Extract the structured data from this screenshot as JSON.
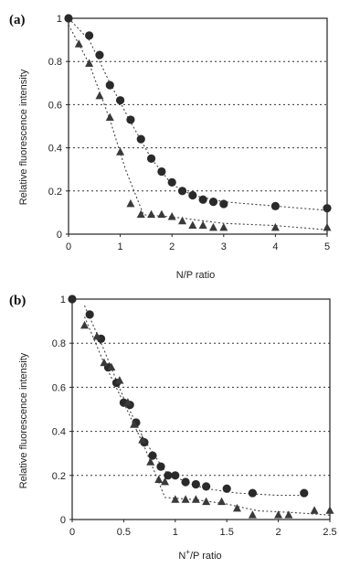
{
  "chart_data": [
    {
      "type": "scatter",
      "panel_label": "(a)",
      "xlabel": "N/P ratio",
      "xlabel_sup": "",
      "xlabel_rest": "",
      "ylabel": "Relative fluorescence intensity",
      "xlim": [
        0,
        5
      ],
      "ylim": [
        0,
        1
      ],
      "xticks": [
        "0",
        "1",
        "2",
        "3",
        "4",
        "5"
      ],
      "xtick_values": [
        0,
        1,
        2,
        3,
        4,
        5
      ],
      "yticks": [
        "0",
        "0.2",
        "0.4",
        "0.6",
        "0.8",
        "1"
      ],
      "ytick_values": [
        0,
        0.2,
        0.4,
        0.6,
        0.8,
        1
      ],
      "grid": "horizontal dotted",
      "series": [
        {
          "marker": "circle",
          "x": [
            0,
            0.4,
            0.6,
            0.8,
            1.0,
            1.2,
            1.4,
            1.6,
            1.8,
            2.0,
            2.2,
            2.4,
            2.6,
            2.8,
            3.0,
            4.0,
            5.0
          ],
          "y": [
            1.0,
            0.92,
            0.83,
            0.69,
            0.62,
            0.53,
            0.44,
            0.35,
            0.29,
            0.24,
            0.2,
            0.18,
            0.16,
            0.15,
            0.14,
            0.13,
            0.12
          ]
        },
        {
          "marker": "triangle",
          "x": [
            0.2,
            0.4,
            0.6,
            0.8,
            1.0,
            1.2,
            1.4,
            1.6,
            1.8,
            2.0,
            2.2,
            2.4,
            2.6,
            2.8,
            3.0,
            4.0,
            5.0
          ],
          "y": [
            0.88,
            0.79,
            0.64,
            0.54,
            0.38,
            0.14,
            0.09,
            0.09,
            0.09,
            0.08,
            0.06,
            0.04,
            0.04,
            0.03,
            0.03,
            0.03,
            0.03
          ]
        }
      ],
      "fit_lines": [
        {
          "x": [
            0,
            0.4,
            0.8,
            1.2,
            1.6,
            2.0,
            2.4,
            3.0,
            4.0,
            5.0
          ],
          "y": [
            1.0,
            0.9,
            0.7,
            0.52,
            0.35,
            0.23,
            0.18,
            0.15,
            0.13,
            0.11
          ]
        },
        {
          "x": [
            0,
            0.4,
            0.8,
            1.1,
            1.45,
            2.0,
            3.0,
            4.0,
            5.0
          ],
          "y": [
            0.97,
            0.79,
            0.53,
            0.3,
            0.09,
            0.08,
            0.05,
            0.04,
            0.02
          ]
        }
      ]
    },
    {
      "type": "scatter",
      "panel_label": "(b)",
      "xlabel": "N+/P ratio",
      "xlabel_sup": "+",
      "xlabel_rest": "/P ratio",
      "ylabel": "Relative fluorescence intensity",
      "xlim": [
        0,
        2.5
      ],
      "ylim": [
        0,
        1
      ],
      "xticks": [
        "0",
        "0.5",
        "1",
        "1.5",
        "2",
        "2.5"
      ],
      "xtick_values": [
        0,
        0.5,
        1,
        1.5,
        2,
        2.5
      ],
      "yticks": [
        "0",
        "0.2",
        "0.4",
        "0.6",
        "0.8",
        "1"
      ],
      "ytick_values": [
        0,
        0.2,
        0.4,
        0.6,
        0.8,
        1
      ],
      "grid": "horizontal dotted",
      "series": [
        {
          "marker": "circle",
          "x": [
            0,
            0.17,
            0.28,
            0.35,
            0.43,
            0.5,
            0.56,
            0.62,
            0.7,
            0.78,
            0.86,
            0.93,
            1.0,
            1.1,
            1.2,
            1.3,
            1.5,
            1.75,
            2.25
          ],
          "y": [
            1.0,
            0.93,
            0.82,
            0.69,
            0.62,
            0.53,
            0.52,
            0.44,
            0.35,
            0.29,
            0.24,
            0.2,
            0.2,
            0.17,
            0.16,
            0.15,
            0.14,
            0.12,
            0.12
          ]
        },
        {
          "marker": "triangle",
          "x": [
            0.12,
            0.24,
            0.31,
            0.38,
            0.46,
            0.54,
            0.6,
            0.68,
            0.76,
            0.84,
            0.9,
            1.0,
            1.1,
            1.2,
            1.3,
            1.45,
            1.6,
            1.75,
            2.0,
            2.1,
            2.35,
            2.5
          ],
          "y": [
            0.88,
            0.83,
            0.71,
            0.69,
            0.63,
            0.53,
            0.43,
            0.36,
            0.26,
            0.18,
            0.17,
            0.09,
            0.09,
            0.09,
            0.08,
            0.08,
            0.05,
            0.02,
            0.02,
            0.02,
            0.04,
            0.04
          ]
        }
      ],
      "fit_lines": [
        {
          "x": [
            0.12,
            0.3,
            0.5,
            0.7,
            0.9,
            1.1,
            1.3,
            1.6,
            2.0,
            2.25
          ],
          "y": [
            0.97,
            0.78,
            0.55,
            0.36,
            0.22,
            0.17,
            0.14,
            0.12,
            0.11,
            0.11
          ]
        },
        {
          "x": [
            0.12,
            0.3,
            0.5,
            0.7,
            0.9,
            1.2,
            1.5,
            1.8,
            2.2,
            2.5
          ],
          "y": [
            0.92,
            0.72,
            0.53,
            0.33,
            0.1,
            0.09,
            0.07,
            0.04,
            0.03,
            0.02
          ]
        }
      ]
    }
  ]
}
